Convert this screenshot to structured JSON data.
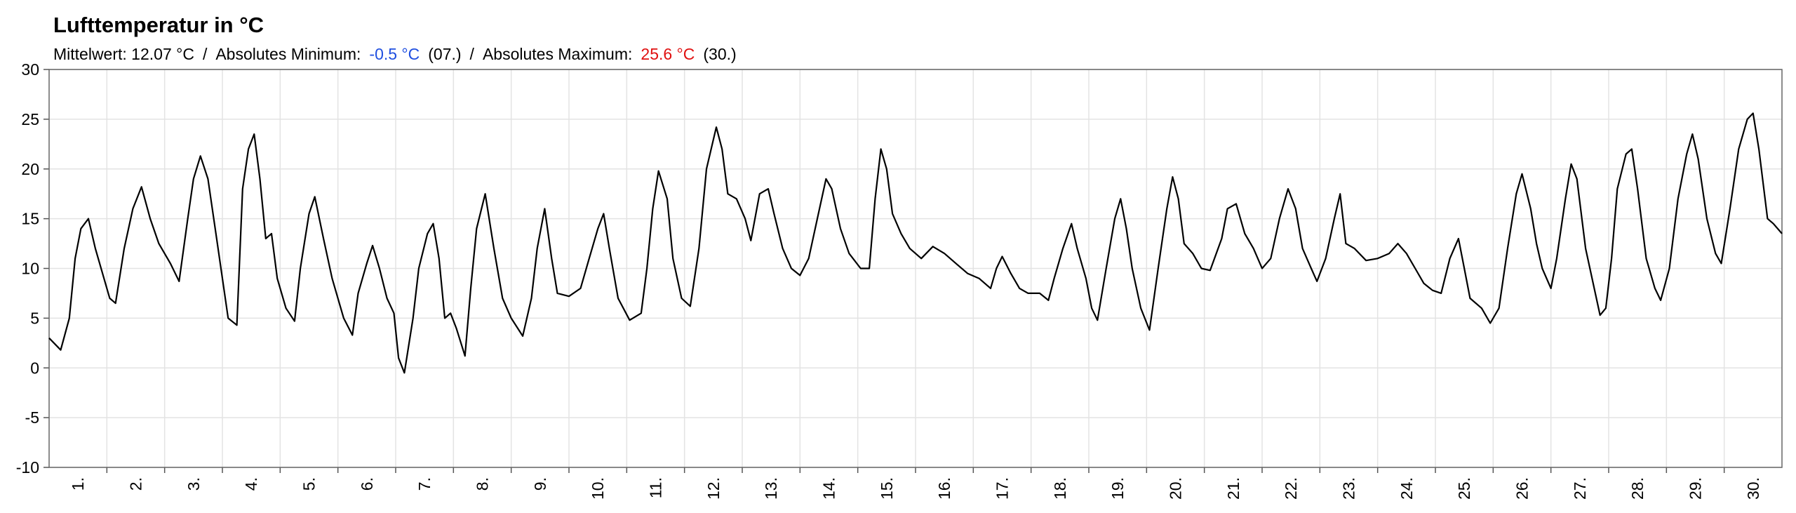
{
  "chart_data": {
    "type": "line",
    "title": "Lufttemperatur in °C",
    "annotations": [
      {
        "text": "Mittelwert: 12.07 °C",
        "color": "#000000"
      },
      {
        "text": "/",
        "color": "#000000"
      },
      {
        "text": "Absolutes Minimum:",
        "color": "#000000"
      },
      {
        "text": "-0.5 °C",
        "color": "#1f4fe0"
      },
      {
        "text": "(07.)",
        "color": "#000000"
      },
      {
        "text": "/",
        "color": "#000000"
      },
      {
        "text": "Absolutes Maximum:",
        "color": "#000000"
      },
      {
        "text": "25.6 °C",
        "color": "#e01010"
      },
      {
        "text": "(30.)",
        "color": "#000000"
      }
    ],
    "xlim": [
      0,
      30
    ],
    "ylim": [
      -10,
      30
    ],
    "yticks": [
      -10,
      -5,
      0,
      5,
      10,
      15,
      20,
      25,
      30
    ],
    "grid": true,
    "xticks": [
      {
        "value": 0.5,
        "label": "1."
      },
      {
        "value": 1.5,
        "label": "2."
      },
      {
        "value": 2.5,
        "label": "3."
      },
      {
        "value": 3.5,
        "label": "4."
      },
      {
        "value": 4.5,
        "label": "5."
      },
      {
        "value": 5.5,
        "label": "6."
      },
      {
        "value": 6.5,
        "label": "7."
      },
      {
        "value": 7.5,
        "label": "8."
      },
      {
        "value": 8.5,
        "label": "9."
      },
      {
        "value": 9.5,
        "label": "10."
      },
      {
        "value": 10.5,
        "label": "11."
      },
      {
        "value": 11.5,
        "label": "12."
      },
      {
        "value": 12.5,
        "label": "13."
      },
      {
        "value": 13.5,
        "label": "14."
      },
      {
        "value": 14.5,
        "label": "15."
      },
      {
        "value": 15.5,
        "label": "16."
      },
      {
        "value": 16.5,
        "label": "17."
      },
      {
        "value": 17.5,
        "label": "18."
      },
      {
        "value": 18.5,
        "label": "19."
      },
      {
        "value": 19.5,
        "label": "20."
      },
      {
        "value": 20.5,
        "label": "21."
      },
      {
        "value": 21.5,
        "label": "22."
      },
      {
        "value": 22.5,
        "label": "23."
      },
      {
        "value": 23.5,
        "label": "24."
      },
      {
        "value": 24.5,
        "label": "25."
      },
      {
        "value": 25.5,
        "label": "26."
      },
      {
        "value": 26.5,
        "label": "27."
      },
      {
        "value": 27.5,
        "label": "28."
      },
      {
        "value": 28.5,
        "label": "29."
      },
      {
        "value": 29.5,
        "label": "30."
      }
    ],
    "xgrid": [
      1,
      2,
      3,
      4,
      5,
      6,
      7,
      8,
      9,
      10,
      11,
      12,
      13,
      14,
      15,
      16,
      17,
      18,
      19,
      20,
      21,
      22,
      23,
      24,
      25,
      26,
      27,
      28,
      29
    ],
    "x": [
      0,
      0.2,
      0.35,
      0.45,
      0.55,
      0.68,
      0.8,
      0.95,
      1.05,
      1.15,
      1.3,
      1.45,
      1.6,
      1.75,
      1.9,
      2.1,
      2.25,
      2.4,
      2.5,
      2.62,
      2.75,
      2.9,
      3.1,
      3.25,
      3.35,
      3.45,
      3.55,
      3.65,
      3.75,
      3.85,
      3.95,
      4.1,
      4.25,
      4.35,
      4.5,
      4.6,
      4.75,
      4.9,
      5.1,
      5.25,
      5.35,
      5.5,
      5.6,
      5.72,
      5.85,
      5.97,
      6.05,
      6.15,
      6.3,
      6.4,
      6.55,
      6.65,
      6.75,
      6.85,
      6.95,
      7.05,
      7.2,
      7.3,
      7.4,
      7.55,
      7.7,
      7.85,
      8,
      8.2,
      8.35,
      8.45,
      8.58,
      8.7,
      8.8,
      9,
      9.2,
      9.35,
      9.5,
      9.6,
      9.7,
      9.85,
      10.05,
      10.25,
      10.35,
      10.45,
      10.55,
      10.7,
      10.8,
      10.95,
      11.1,
      11.25,
      11.38,
      11.55,
      11.65,
      11.75,
      11.9,
      12.05,
      12.15,
      12.3,
      12.45,
      12.55,
      12.7,
      12.85,
      13,
      13.15,
      13.3,
      13.45,
      13.55,
      13.7,
      13.85,
      14.05,
      14.2,
      14.3,
      14.4,
      14.5,
      14.6,
      14.75,
      14.9,
      15.1,
      15.3,
      15.5,
      15.7,
      15.9,
      16.1,
      16.3,
      16.4,
      16.5,
      16.65,
      16.8,
      16.95,
      17.15,
      17.3,
      17.4,
      17.55,
      17.7,
      17.8,
      17.95,
      18.05,
      18.15,
      18.3,
      18.45,
      18.55,
      18.65,
      18.75,
      18.9,
      19.05,
      19.2,
      19.35,
      19.45,
      19.55,
      19.65,
      19.8,
      19.95,
      20.1,
      20.3,
      20.4,
      20.55,
      20.7,
      20.85,
      21,
      21.15,
      21.3,
      21.45,
      21.58,
      21.7,
      21.85,
      21.95,
      22.1,
      22.25,
      22.35,
      22.45,
      22.6,
      22.8,
      23,
      23.2,
      23.35,
      23.5,
      23.65,
      23.8,
      23.95,
      24.1,
      24.25,
      24.4,
      24.5,
      24.6,
      24.8,
      24.95,
      25.1,
      25.25,
      25.4,
      25.5,
      25.65,
      25.75,
      25.85,
      26,
      26.1,
      26.25,
      26.35,
      26.45,
      26.6,
      26.75,
      26.85,
      26.95,
      27.05,
      27.15,
      27.3,
      27.4,
      27.5,
      27.65,
      27.8,
      27.9,
      28.05,
      28.2,
      28.35,
      28.45,
      28.55,
      28.7,
      28.85,
      28.95,
      29.1,
      29.25,
      29.4,
      29.5,
      29.6,
      29.75,
      29.85,
      30
    ],
    "series": [
      {
        "name": "Lufttemperatur",
        "color": "#000000",
        "values": [
          3,
          1.8,
          5,
          11,
          14,
          15,
          12,
          9,
          7,
          6.5,
          12,
          16,
          18.2,
          15,
          12.5,
          10.5,
          8.7,
          15,
          19,
          21.3,
          19,
          13,
          5,
          4.3,
          18,
          22,
          23.5,
          19,
          13,
          13.5,
          9,
          6,
          4.7,
          10,
          15.5,
          17.2,
          13,
          9,
          5,
          3.3,
          7.5,
          10.5,
          12.3,
          10,
          7,
          5.5,
          1,
          -0.5,
          5,
          10,
          13.5,
          14.5,
          11,
          5,
          5.5,
          4,
          1.2,
          8,
          14,
          17.5,
          12,
          7,
          5,
          3.2,
          7,
          12,
          16,
          11,
          7.5,
          7.2,
          8,
          11,
          14,
          15.5,
          12,
          7,
          4.8,
          5.5,
          10,
          16,
          19.8,
          17,
          11,
          7,
          6.2,
          12,
          20,
          24.2,
          22,
          17.5,
          17,
          15,
          12.8,
          17.5,
          18,
          15.5,
          12,
          10,
          9.3,
          11,
          15,
          19,
          18,
          14,
          11.5,
          10,
          10,
          17,
          22,
          20,
          15.5,
          13.5,
          12,
          11,
          12.2,
          11.5,
          10.5,
          9.5,
          9,
          8,
          10,
          11.2,
          9.5,
          8,
          7.5,
          7.5,
          6.8,
          9,
          12,
          14.5,
          12,
          9,
          6,
          4.8,
          10,
          15,
          17,
          14,
          10,
          6,
          3.8,
          10,
          16,
          19.2,
          17,
          12.5,
          11.5,
          10,
          9.8,
          13,
          16,
          16.5,
          13.5,
          12,
          10,
          11,
          15,
          18,
          16,
          12,
          10,
          8.7,
          11,
          15,
          17.5,
          12.5,
          12,
          10.8,
          11,
          11.5,
          12.5,
          11.5,
          10,
          8.5,
          7.8,
          7.5,
          11,
          13,
          10,
          7,
          6,
          4.5,
          6,
          12,
          17.5,
          19.5,
          16,
          12.5,
          10,
          8,
          11,
          17,
          20.5,
          19,
          12,
          8,
          5.3,
          6,
          11,
          18,
          21.5,
          22,
          18,
          11,
          8,
          6.8,
          10,
          17,
          21.5,
          23.5,
          21,
          15,
          11.5,
          10.5,
          16,
          22,
          25,
          25.6,
          22,
          15,
          14.5,
          13.5
        ]
      }
    ]
  }
}
